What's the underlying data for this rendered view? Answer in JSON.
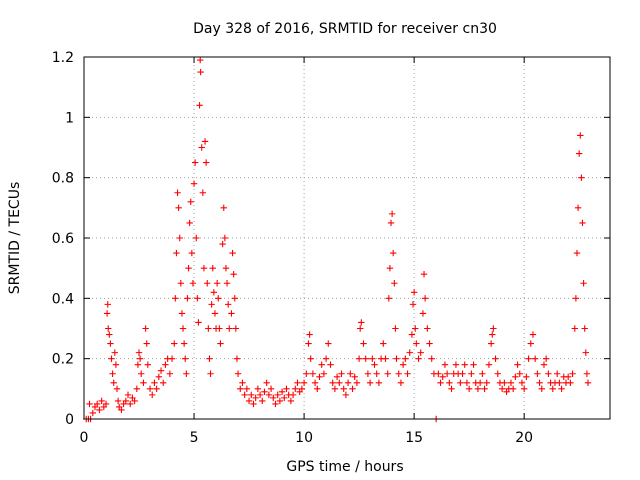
{
  "chart_data": {
    "type": "scatter",
    "title": "Day 328 of 2016, SRMTID for receiver cn30",
    "xlabel": "GPS time / hours",
    "ylabel": "SRMTID / TECUs",
    "xlim": [
      0,
      23.9
    ],
    "ylim": [
      0,
      1.2
    ],
    "x_ticks": [
      0,
      5,
      10,
      15,
      20
    ],
    "x_tick_labels": [
      "0",
      "5",
      "10",
      "15",
      "20"
    ],
    "y_ticks": [
      0,
      0.2,
      0.4,
      0.6,
      0.8,
      1,
      1.2
    ],
    "y_tick_labels": [
      "0",
      "0.2",
      "0.4",
      "0.6",
      "0.8",
      "1",
      "1.2"
    ],
    "grid": true,
    "marker": "+",
    "color": "#ff0000",
    "series": [
      {
        "name": "SRMTID",
        "points": [
          [
            0.1,
            0.0
          ],
          [
            0.2,
            0.0
          ],
          [
            0.3,
            0.0
          ],
          [
            0.25,
            0.05
          ],
          [
            0.4,
            0.02
          ],
          [
            0.5,
            0.04
          ],
          [
            0.6,
            0.05
          ],
          [
            0.7,
            0.03
          ],
          [
            0.8,
            0.06
          ],
          [
            0.9,
            0.04
          ],
          [
            1.0,
            0.05
          ],
          [
            1.05,
            0.35
          ],
          [
            1.08,
            0.38
          ],
          [
            1.1,
            0.3
          ],
          [
            1.15,
            0.28
          ],
          [
            1.2,
            0.25
          ],
          [
            1.25,
            0.2
          ],
          [
            1.3,
            0.15
          ],
          [
            1.35,
            0.12
          ],
          [
            1.4,
            0.22
          ],
          [
            1.45,
            0.18
          ],
          [
            1.5,
            0.1
          ],
          [
            1.55,
            0.06
          ],
          [
            1.6,
            0.04
          ],
          [
            1.7,
            0.03
          ],
          [
            1.8,
            0.05
          ],
          [
            1.9,
            0.06
          ],
          [
            2.0,
            0.08
          ],
          [
            2.1,
            0.05
          ],
          [
            2.2,
            0.07
          ],
          [
            2.3,
            0.06
          ],
          [
            2.4,
            0.1
          ],
          [
            2.45,
            0.18
          ],
          [
            2.5,
            0.22
          ],
          [
            2.55,
            0.2
          ],
          [
            2.6,
            0.15
          ],
          [
            2.7,
            0.12
          ],
          [
            2.8,
            0.3
          ],
          [
            2.85,
            0.25
          ],
          [
            2.9,
            0.18
          ],
          [
            3.0,
            0.1
          ],
          [
            3.1,
            0.08
          ],
          [
            3.2,
            0.12
          ],
          [
            3.3,
            0.1
          ],
          [
            3.4,
            0.14
          ],
          [
            3.5,
            0.16
          ],
          [
            3.6,
            0.12
          ],
          [
            3.7,
            0.18
          ],
          [
            3.8,
            0.2
          ],
          [
            3.9,
            0.15
          ],
          [
            4.0,
            0.2
          ],
          [
            4.1,
            0.25
          ],
          [
            4.15,
            0.4
          ],
          [
            4.2,
            0.55
          ],
          [
            4.25,
            0.75
          ],
          [
            4.3,
            0.7
          ],
          [
            4.35,
            0.6
          ],
          [
            4.4,
            0.45
          ],
          [
            4.45,
            0.35
          ],
          [
            4.5,
            0.3
          ],
          [
            4.55,
            0.25
          ],
          [
            4.6,
            0.2
          ],
          [
            4.65,
            0.15
          ],
          [
            4.7,
            0.4
          ],
          [
            4.75,
            0.5
          ],
          [
            4.8,
            0.65
          ],
          [
            4.85,
            0.72
          ],
          [
            4.9,
            0.55
          ],
          [
            4.95,
            0.45
          ],
          [
            5.0,
            0.78
          ],
          [
            5.05,
            0.85
          ],
          [
            5.1,
            0.6
          ],
          [
            5.15,
            0.4
          ],
          [
            5.2,
            0.32
          ],
          [
            5.25,
            1.04
          ],
          [
            5.28,
            1.19
          ],
          [
            5.3,
            1.15
          ],
          [
            5.35,
            0.9
          ],
          [
            5.4,
            0.75
          ],
          [
            5.45,
            0.5
          ],
          [
            5.5,
            0.92
          ],
          [
            5.55,
            0.85
          ],
          [
            5.6,
            0.45
          ],
          [
            5.65,
            0.3
          ],
          [
            5.7,
            0.2
          ],
          [
            5.75,
            0.15
          ],
          [
            5.8,
            0.38
          ],
          [
            5.85,
            0.5
          ],
          [
            5.9,
            0.42
          ],
          [
            5.95,
            0.35
          ],
          [
            6.0,
            0.3
          ],
          [
            6.05,
            0.45
          ],
          [
            6.1,
            0.4
          ],
          [
            6.15,
            0.3
          ],
          [
            6.2,
            0.25
          ],
          [
            6.3,
            0.58
          ],
          [
            6.35,
            0.7
          ],
          [
            6.4,
            0.6
          ],
          [
            6.45,
            0.5
          ],
          [
            6.5,
            0.45
          ],
          [
            6.55,
            0.38
          ],
          [
            6.6,
            0.3
          ],
          [
            6.7,
            0.35
          ],
          [
            6.75,
            0.55
          ],
          [
            6.8,
            0.48
          ],
          [
            6.85,
            0.4
          ],
          [
            6.9,
            0.3
          ],
          [
            6.95,
            0.2
          ],
          [
            7.0,
            0.15
          ],
          [
            7.1,
            0.1
          ],
          [
            7.2,
            0.12
          ],
          [
            7.3,
            0.08
          ],
          [
            7.4,
            0.1
          ],
          [
            7.5,
            0.06
          ],
          [
            7.6,
            0.08
          ],
          [
            7.7,
            0.05
          ],
          [
            7.8,
            0.07
          ],
          [
            7.9,
            0.1
          ],
          [
            8.0,
            0.08
          ],
          [
            8.1,
            0.06
          ],
          [
            8.2,
            0.09
          ],
          [
            8.3,
            0.12
          ],
          [
            8.4,
            0.08
          ],
          [
            8.5,
            0.1
          ],
          [
            8.6,
            0.07
          ],
          [
            8.7,
            0.05
          ],
          [
            8.8,
            0.08
          ],
          [
            8.9,
            0.06
          ],
          [
            9.0,
            0.09
          ],
          [
            9.1,
            0.07
          ],
          [
            9.2,
            0.1
          ],
          [
            9.3,
            0.08
          ],
          [
            9.4,
            0.06
          ],
          [
            9.5,
            0.08
          ],
          [
            9.6,
            0.1
          ],
          [
            9.7,
            0.12
          ],
          [
            9.8,
            0.09
          ],
          [
            9.9,
            0.1
          ],
          [
            10.0,
            0.12
          ],
          [
            10.1,
            0.15
          ],
          [
            10.2,
            0.25
          ],
          [
            10.25,
            0.28
          ],
          [
            10.3,
            0.2
          ],
          [
            10.4,
            0.15
          ],
          [
            10.5,
            0.12
          ],
          [
            10.6,
            0.1
          ],
          [
            10.7,
            0.14
          ],
          [
            10.8,
            0.18
          ],
          [
            10.9,
            0.15
          ],
          [
            11.0,
            0.2
          ],
          [
            11.1,
            0.25
          ],
          [
            11.2,
            0.18
          ],
          [
            11.3,
            0.12
          ],
          [
            11.4,
            0.1
          ],
          [
            11.5,
            0.14
          ],
          [
            11.6,
            0.12
          ],
          [
            11.7,
            0.15
          ],
          [
            11.8,
            0.1
          ],
          [
            11.9,
            0.08
          ],
          [
            12.0,
            0.12
          ],
          [
            12.1,
            0.15
          ],
          [
            12.2,
            0.1
          ],
          [
            12.3,
            0.14
          ],
          [
            12.4,
            0.12
          ],
          [
            12.5,
            0.2
          ],
          [
            12.55,
            0.3
          ],
          [
            12.6,
            0.32
          ],
          [
            12.7,
            0.25
          ],
          [
            12.8,
            0.2
          ],
          [
            12.9,
            0.15
          ],
          [
            13.0,
            0.12
          ],
          [
            13.1,
            0.2
          ],
          [
            13.2,
            0.18
          ],
          [
            13.3,
            0.15
          ],
          [
            13.4,
            0.12
          ],
          [
            13.5,
            0.2
          ],
          [
            13.6,
            0.25
          ],
          [
            13.7,
            0.2
          ],
          [
            13.8,
            0.15
          ],
          [
            13.85,
            0.4
          ],
          [
            13.9,
            0.5
          ],
          [
            13.95,
            0.65
          ],
          [
            14.0,
            0.68
          ],
          [
            14.05,
            0.55
          ],
          [
            14.1,
            0.45
          ],
          [
            14.15,
            0.3
          ],
          [
            14.2,
            0.2
          ],
          [
            14.3,
            0.15
          ],
          [
            14.4,
            0.12
          ],
          [
            14.5,
            0.18
          ],
          [
            14.6,
            0.2
          ],
          [
            14.7,
            0.15
          ],
          [
            14.8,
            0.22
          ],
          [
            14.9,
            0.28
          ],
          [
            14.95,
            0.38
          ],
          [
            15.0,
            0.42
          ],
          [
            15.05,
            0.3
          ],
          [
            15.1,
            0.25
          ],
          [
            15.2,
            0.2
          ],
          [
            15.3,
            0.22
          ],
          [
            15.4,
            0.35
          ],
          [
            15.45,
            0.48
          ],
          [
            15.5,
            0.4
          ],
          [
            15.6,
            0.3
          ],
          [
            15.7,
            0.25
          ],
          [
            15.8,
            0.2
          ],
          [
            15.9,
            0.15
          ],
          [
            16.0,
            0.0
          ],
          [
            16.1,
            0.15
          ],
          [
            16.2,
            0.12
          ],
          [
            16.3,
            0.14
          ],
          [
            16.4,
            0.18
          ],
          [
            16.5,
            0.15
          ],
          [
            16.6,
            0.12
          ],
          [
            16.7,
            0.1
          ],
          [
            16.8,
            0.15
          ],
          [
            16.9,
            0.18
          ],
          [
            17.0,
            0.15
          ],
          [
            17.1,
            0.12
          ],
          [
            17.2,
            0.15
          ],
          [
            17.3,
            0.18
          ],
          [
            17.4,
            0.12
          ],
          [
            17.5,
            0.1
          ],
          [
            17.6,
            0.15
          ],
          [
            17.7,
            0.18
          ],
          [
            17.8,
            0.12
          ],
          [
            17.9,
            0.1
          ],
          [
            18.0,
            0.12
          ],
          [
            18.1,
            0.15
          ],
          [
            18.2,
            0.1
          ],
          [
            18.3,
            0.12
          ],
          [
            18.4,
            0.18
          ],
          [
            18.5,
            0.25
          ],
          [
            18.55,
            0.28
          ],
          [
            18.6,
            0.3
          ],
          [
            18.7,
            0.2
          ],
          [
            18.8,
            0.15
          ],
          [
            18.9,
            0.12
          ],
          [
            19.0,
            0.1
          ],
          [
            19.1,
            0.12
          ],
          [
            19.2,
            0.09
          ],
          [
            19.3,
            0.1
          ],
          [
            19.4,
            0.12
          ],
          [
            19.5,
            0.1
          ],
          [
            19.6,
            0.14
          ],
          [
            19.7,
            0.18
          ],
          [
            19.8,
            0.15
          ],
          [
            19.9,
            0.12
          ],
          [
            20.0,
            0.1
          ],
          [
            20.1,
            0.14
          ],
          [
            20.2,
            0.2
          ],
          [
            20.3,
            0.25
          ],
          [
            20.4,
            0.28
          ],
          [
            20.5,
            0.2
          ],
          [
            20.6,
            0.15
          ],
          [
            20.7,
            0.12
          ],
          [
            20.8,
            0.1
          ],
          [
            20.9,
            0.18
          ],
          [
            21.0,
            0.2
          ],
          [
            21.1,
            0.15
          ],
          [
            21.2,
            0.12
          ],
          [
            21.3,
            0.1
          ],
          [
            21.4,
            0.12
          ],
          [
            21.5,
            0.15
          ],
          [
            21.6,
            0.12
          ],
          [
            21.7,
            0.1
          ],
          [
            21.8,
            0.14
          ],
          [
            21.9,
            0.12
          ],
          [
            22.0,
            0.14
          ],
          [
            22.1,
            0.12
          ],
          [
            22.2,
            0.15
          ],
          [
            22.3,
            0.3
          ],
          [
            22.35,
            0.4
          ],
          [
            22.4,
            0.55
          ],
          [
            22.45,
            0.7
          ],
          [
            22.5,
            0.88
          ],
          [
            22.55,
            0.94
          ],
          [
            22.6,
            0.8
          ],
          [
            22.65,
            0.65
          ],
          [
            22.7,
            0.45
          ],
          [
            22.75,
            0.3
          ],
          [
            22.8,
            0.22
          ],
          [
            22.85,
            0.15
          ],
          [
            22.9,
            0.12
          ]
        ]
      }
    ]
  }
}
